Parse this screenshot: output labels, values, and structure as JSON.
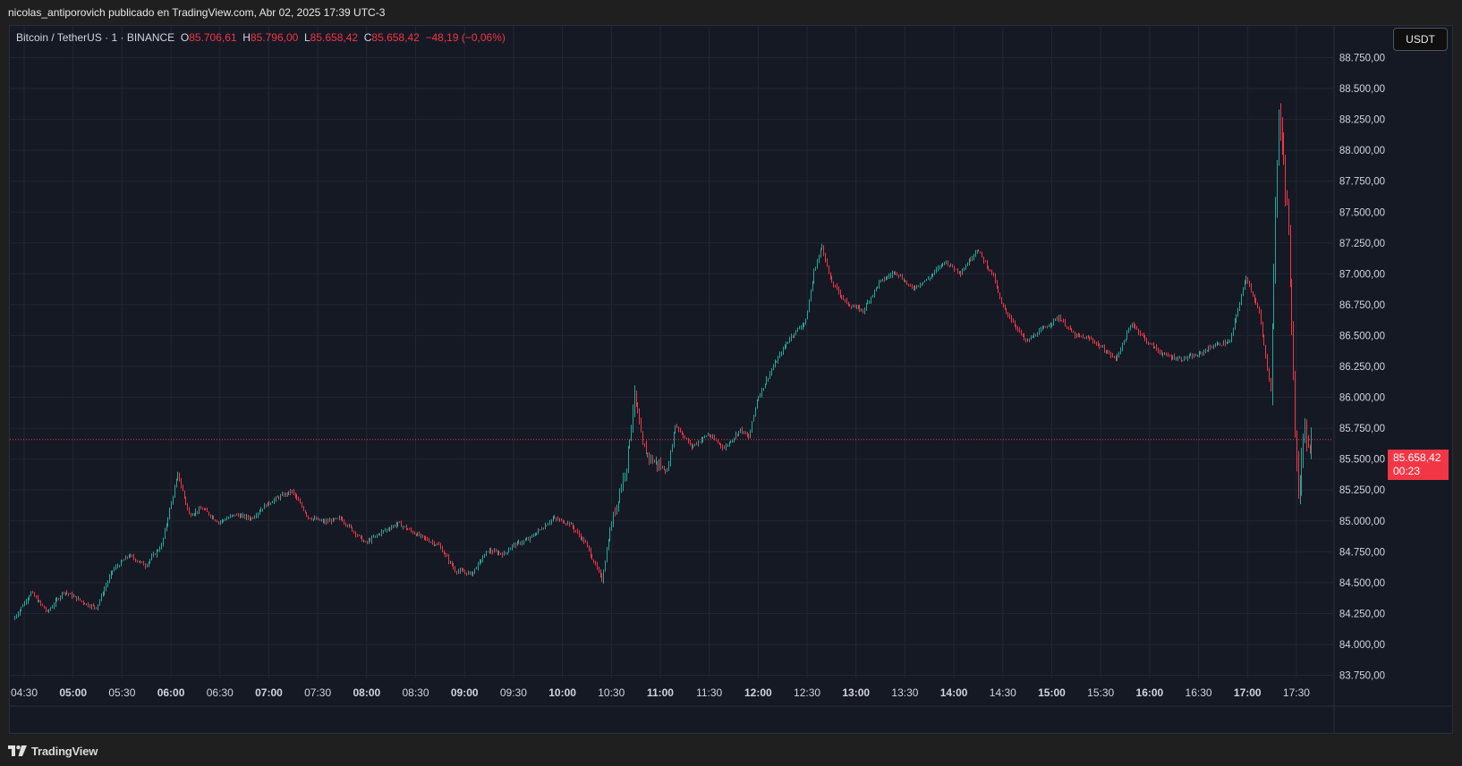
{
  "header": {
    "published_by": "nicolas_antiporovich publicado en TradingView.com, Abr 02, 2025 17:39 UTC-3"
  },
  "legend": {
    "symbol": "Bitcoin / TetherUS · 1 · BINANCE",
    "open_label": "O",
    "open": "85.706,61",
    "high_label": "H",
    "high": "85.796,00",
    "low_label": "L",
    "low": "85.658,42",
    "close_label": "C",
    "close": "85.658,42",
    "change": "−48,19 (−0,06%)"
  },
  "currency_button": "USDT",
  "last_price": {
    "value": "85.658,42",
    "countdown": "00:23"
  },
  "footer": {
    "brand": "TradingView"
  },
  "colors": {
    "up": "#26a69a",
    "down": "#f23645",
    "background": "#151924",
    "grid": "#232733",
    "text": "#d1d4dc"
  },
  "chart_data": {
    "type": "candlestick",
    "interval": "1 minute",
    "x_tick_labels": [
      "04:30",
      "05:00",
      "05:30",
      "06:00",
      "06:30",
      "07:00",
      "07:30",
      "08:00",
      "08:30",
      "09:00",
      "09:30",
      "10:00",
      "10:30",
      "11:00",
      "11:30",
      "12:00",
      "12:30",
      "13:00",
      "13:30",
      "14:00",
      "14:30",
      "15:00",
      "15:30",
      "16:00",
      "16:30",
      "17:00",
      "17:30"
    ],
    "y_tick_labels": [
      "88.750,00",
      "88.500,00",
      "88.250,00",
      "88.000,00",
      "87.750,00",
      "87.500,00",
      "87.250,00",
      "87.000,00",
      "86.750,00",
      "86.500,00",
      "86.250,00",
      "86.000,00",
      "85.750,00",
      "85.500,00",
      "85.250,00",
      "85.000,00",
      "84.750,00",
      "84.500,00",
      "84.250,00",
      "84.000,00",
      "83.750,00"
    ],
    "ylim": [
      83700,
      88850
    ],
    "last_close": 85658.42,
    "price_path": [
      [
        "04:24",
        84200
      ],
      [
        "04:35",
        84420
      ],
      [
        "04:45",
        84260
      ],
      [
        "04:55",
        84430
      ],
      [
        "05:10",
        84320
      ],
      [
        "05:15",
        84300
      ],
      [
        "05:25",
        84600
      ],
      [
        "05:35",
        84720
      ],
      [
        "05:45",
        84640
      ],
      [
        "05:55",
        84800
      ],
      [
        "06:05",
        85380
      ],
      [
        "06:12",
        85050
      ],
      [
        "06:20",
        85100
      ],
      [
        "06:30",
        84990
      ],
      [
        "06:40",
        85050
      ],
      [
        "06:50",
        85020
      ],
      [
        "06:58",
        85120
      ],
      [
        "07:05",
        85180
      ],
      [
        "07:15",
        85240
      ],
      [
        "07:25",
        85030
      ],
      [
        "07:35",
        84990
      ],
      [
        "07:45",
        85020
      ],
      [
        "08:00",
        84820
      ],
      [
        "08:10",
        84910
      ],
      [
        "08:20",
        84980
      ],
      [
        "08:30",
        84900
      ],
      [
        "08:45",
        84800
      ],
      [
        "08:55",
        84600
      ],
      [
        "09:05",
        84570
      ],
      [
        "09:15",
        84760
      ],
      [
        "09:25",
        84730
      ],
      [
        "09:30",
        84800
      ],
      [
        "09:40",
        84850
      ],
      [
        "09:55",
        85020
      ],
      [
        "10:05",
        84980
      ],
      [
        "10:15",
        84820
      ],
      [
        "10:25",
        84520
      ],
      [
        "10:30",
        84930
      ],
      [
        "10:40",
        85450
      ],
      [
        "10:45",
        86020
      ],
      [
        "10:50",
        85600
      ],
      [
        "10:55",
        85500
      ],
      [
        "11:05",
        85400
      ],
      [
        "11:10",
        85780
      ],
      [
        "11:20",
        85600
      ],
      [
        "11:30",
        85700
      ],
      [
        "11:40",
        85590
      ],
      [
        "11:50",
        85740
      ],
      [
        "11:55",
        85670
      ],
      [
        "12:00",
        85980
      ],
      [
        "12:10",
        86250
      ],
      [
        "12:20",
        86480
      ],
      [
        "12:30",
        86620
      ],
      [
        "12:35",
        87020
      ],
      [
        "12:40",
        87230
      ],
      [
        "12:45",
        86950
      ],
      [
        "12:55",
        86760
      ],
      [
        "13:05",
        86700
      ],
      [
        "13:15",
        86930
      ],
      [
        "13:25",
        87020
      ],
      [
        "13:35",
        86880
      ],
      [
        "13:45",
        86960
      ],
      [
        "13:55",
        87100
      ],
      [
        "14:05",
        87010
      ],
      [
        "14:15",
        87200
      ],
      [
        "14:25",
        86980
      ],
      [
        "14:30",
        86750
      ],
      [
        "14:45",
        86450
      ],
      [
        "14:55",
        86550
      ],
      [
        "15:05",
        86650
      ],
      [
        "15:15",
        86500
      ],
      [
        "15:25",
        86470
      ],
      [
        "15:40",
        86310
      ],
      [
        "15:50",
        86600
      ],
      [
        "16:00",
        86440
      ],
      [
        "16:10",
        86340
      ],
      [
        "16:20",
        86310
      ],
      [
        "16:30",
        86340
      ],
      [
        "16:40",
        86420
      ],
      [
        "16:50",
        86450
      ],
      [
        "17:00",
        86980
      ],
      [
        "17:08",
        86680
      ],
      [
        "17:15",
        86060
      ],
      [
        "17:18",
        87500
      ],
      [
        "17:20",
        88320
      ],
      [
        "17:23",
        87900
      ],
      [
        "17:26",
        87350
      ],
      [
        "17:28",
        86450
      ],
      [
        "17:30",
        85760
      ],
      [
        "17:32",
        85300
      ],
      [
        "17:36",
        85700
      ],
      [
        "17:39",
        85658
      ]
    ]
  }
}
